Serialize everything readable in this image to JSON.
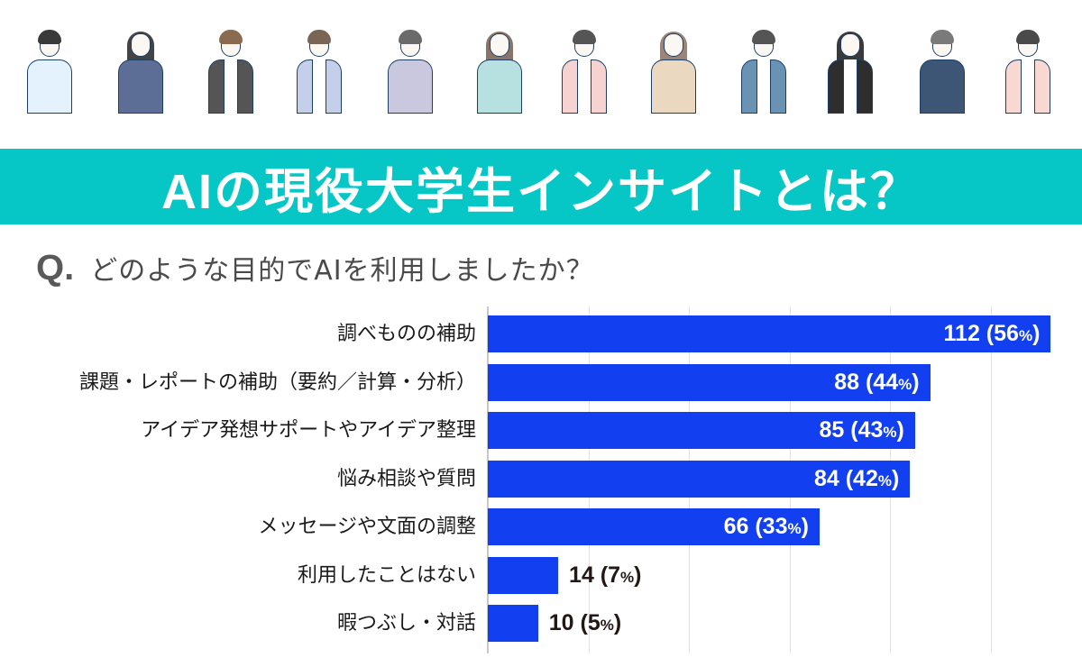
{
  "header": {
    "people": [
      {
        "name": "man-light-blue-shirt",
        "hair": "#3a3a3a",
        "body": "#e3f2fd",
        "long_hair": false,
        "inner": false
      },
      {
        "name": "woman-navy-dress",
        "hair": "#444444",
        "body": "#5d6e96",
        "long_hair": true,
        "inner": false
      },
      {
        "name": "man-dark-jacket",
        "hair": "#8a6b50",
        "body": "#555555",
        "long_hair": false,
        "inner": true
      },
      {
        "name": "woman-blue-blazer",
        "hair": "#7a6555",
        "body": "#c4d0ea",
        "long_hair": false,
        "inner": true
      },
      {
        "name": "man-lavender-hoodie",
        "hair": "#6a6a6a",
        "body": "#c9c8de",
        "long_hair": false,
        "inner": false
      },
      {
        "name": "woman-mint-top",
        "hair": "#8a7468",
        "body": "#b7e0e0",
        "long_hair": true,
        "inner": false
      },
      {
        "name": "man-pink-shirt",
        "hair": "#555555",
        "body": "#f6d3d0",
        "long_hair": false,
        "inner": true
      },
      {
        "name": "woman-beige-sweater",
        "hair": "#9c8576",
        "body": "#ead8c0",
        "long_hair": true,
        "inner": false
      },
      {
        "name": "man-blue-blazer",
        "hair": "#555555",
        "body": "#6a92b3",
        "long_hair": false,
        "inner": true
      },
      {
        "name": "woman-glasses-overalls",
        "hair": "#3a3a3a",
        "body": "#2e2e2e",
        "long_hair": true,
        "inner": true
      },
      {
        "name": "man-glasses-navy-sweater",
        "hair": "#7a7a7a",
        "body": "#3e5676",
        "long_hair": false,
        "inner": false
      },
      {
        "name": "woman-pink-cardigan",
        "hair": "#4a4a4a",
        "body": "#f8d8d0",
        "long_hair": false,
        "inner": true
      }
    ]
  },
  "banner": {
    "title": "AIの現役大学生インサイトとは？",
    "background_color": "#06c6c6"
  },
  "question": {
    "marker": "Q.",
    "text": "どのような目的でAIを利用しましたか？"
  },
  "chart_data": {
    "type": "bar",
    "orientation": "horizontal",
    "title": "どのような目的でAIを利用しましたか？",
    "categories": [
      "調べものの補助",
      "課題・レポートの補助（要約／計算・分析）",
      "アイデア発想サポートやアイデア整理",
      "悩み相談や質問",
      "メッセージや文面の調整",
      "利用したことはない",
      "暇つぶし・対話"
    ],
    "values": [
      112,
      88,
      85,
      84,
      66,
      14,
      10
    ],
    "percentages": [
      56,
      44,
      43,
      42,
      33,
      7,
      5
    ],
    "labels": [
      "112 (56%)",
      "88 (44%)",
      "85 (43%)",
      "84 (42%)",
      "66 (33%)",
      "14 (7%)",
      "10 (5%)"
    ],
    "xlabel": "",
    "ylabel": "",
    "xlim": [
      0,
      120
    ],
    "gridlines_x": [
      0,
      20,
      40,
      60,
      80,
      100
    ],
    "grid": true,
    "legend": "none",
    "bar_color": "#1240f0"
  },
  "bars": [
    {
      "label": "調べものの補助",
      "count": "112",
      "pct_open": " (56",
      "pct_sign": "%",
      "pct_close": ")"
    },
    {
      "label": "課題・レポートの補助（要約／計算・分析）",
      "count": "88",
      "pct_open": " (44",
      "pct_sign": "%",
      "pct_close": ")"
    },
    {
      "label": "アイデア発想サポートやアイデア整理",
      "count": "85",
      "pct_open": " (43",
      "pct_sign": "%",
      "pct_close": ")"
    },
    {
      "label": "悩み相談や質問",
      "count": "84",
      "pct_open": " (42",
      "pct_sign": "%",
      "pct_close": ")"
    },
    {
      "label": "メッセージや文面の調整",
      "count": "66",
      "pct_open": " (33",
      "pct_sign": "%",
      "pct_close": ")"
    },
    {
      "label": "利用したことはない",
      "count": "14",
      "pct_open": " (7",
      "pct_sign": "%",
      "pct_close": ")"
    },
    {
      "label": "暇つぶし・対話",
      "count": "10",
      "pct_open": " (5",
      "pct_sign": "%",
      "pct_close": ")"
    }
  ]
}
